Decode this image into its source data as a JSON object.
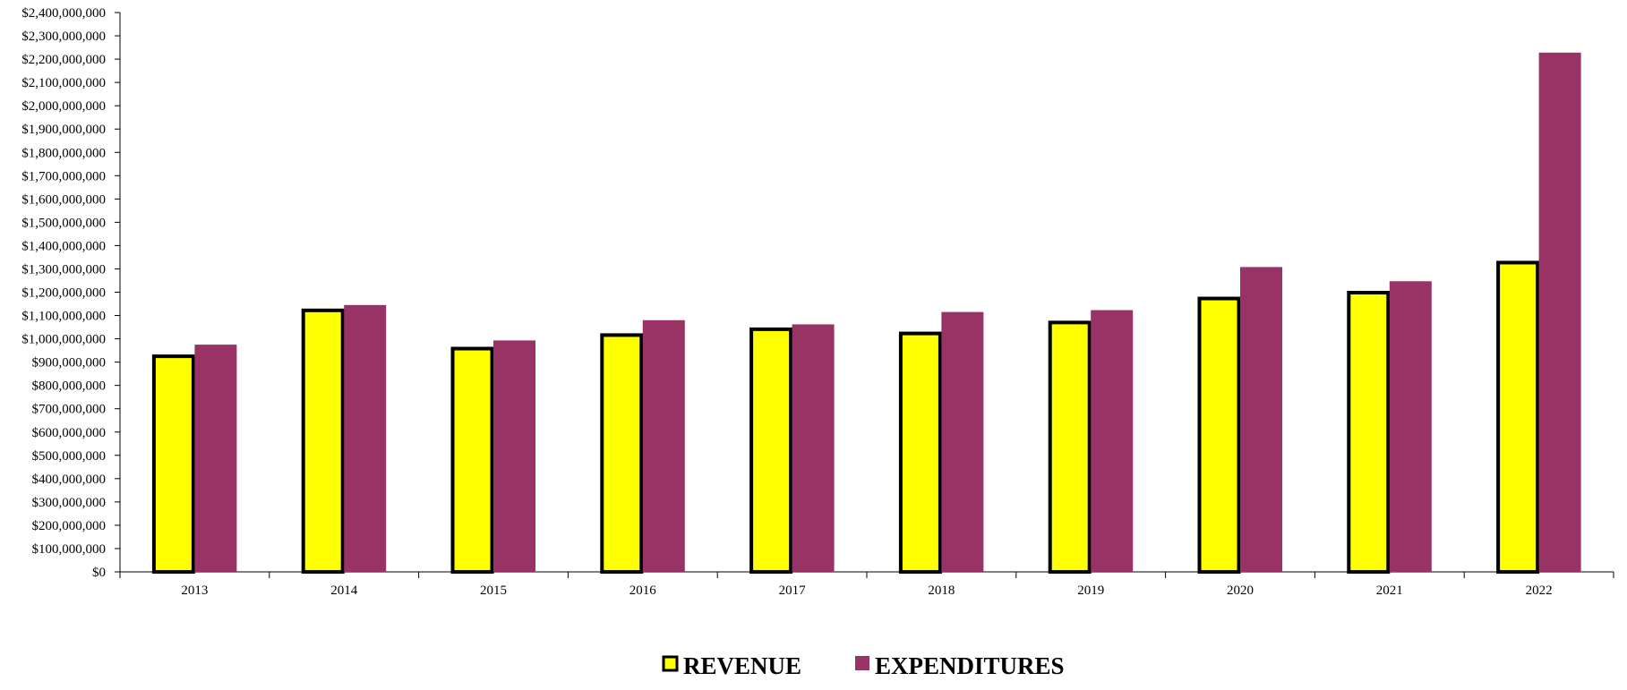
{
  "chart_data": {
    "type": "bar",
    "title": "",
    "xlabel": "",
    "ylabel": "",
    "categories": [
      "2013",
      "2014",
      "2015",
      "2016",
      "2017",
      "2018",
      "2019",
      "2020",
      "2021",
      "2022"
    ],
    "series": [
      {
        "name": "REVENUE",
        "color": "#FFFF00",
        "stroke": "#000000",
        "values": [
          925000000,
          1122000000,
          958000000,
          1016000000,
          1041000000,
          1023000000,
          1070000000,
          1173000000,
          1198000000,
          1327000000
        ]
      },
      {
        "name": "EXPENDITURES",
        "color": "#993366",
        "values": [
          975000000,
          1145000000,
          993000000,
          1080000000,
          1062000000,
          1115000000,
          1123000000,
          1308000000,
          1247000000,
          2228000000
        ]
      }
    ],
    "ylim": [
      0,
      2400000000
    ],
    "y_ticks": [
      "$0",
      "$100,000,000",
      "$200,000,000",
      "$300,000,000",
      "$400,000,000",
      "$500,000,000",
      "$600,000,000",
      "$700,000,000",
      "$800,000,000",
      "$900,000,000",
      "$1,000,000,000",
      "$1,100,000,000",
      "$1,200,000,000",
      "$1,300,000,000",
      "$1,400,000,000",
      "$1,500,000,000",
      "$1,600,000,000",
      "$1,700,000,000",
      "$1,800,000,000",
      "$1,900,000,000",
      "$2,000,000,000",
      "$2,100,000,000",
      "$2,200,000,000",
      "$2,300,000,000",
      "$2,400,000,000"
    ],
    "grid": false,
    "legend": "bottom-center"
  }
}
